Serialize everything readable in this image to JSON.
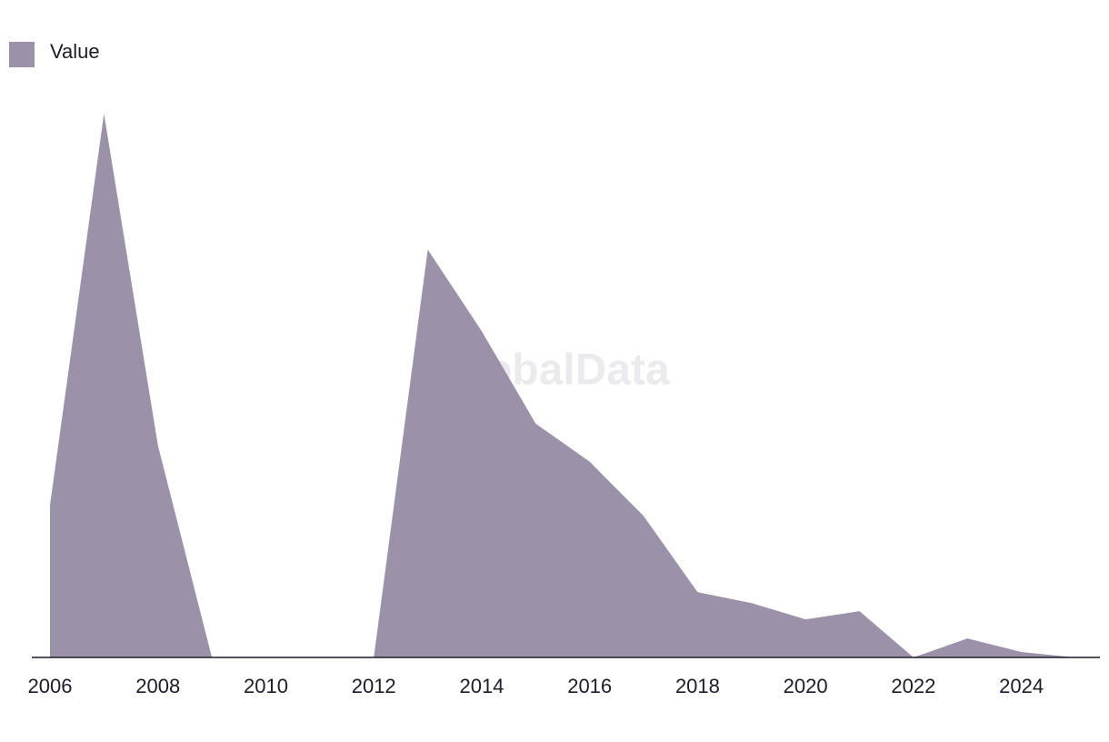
{
  "chart_data": {
    "type": "area",
    "legend": "Value",
    "watermark": "GlobalData",
    "color": "#9b91a9",
    "x": [
      2006,
      2007,
      2008,
      2009,
      2010,
      2011,
      2012,
      2013,
      2014,
      2015,
      2016,
      2017,
      2018,
      2019,
      2020,
      2021,
      2022,
      2023,
      2024,
      2025
    ],
    "values": [
      28,
      100,
      39,
      0,
      0,
      0,
      0,
      75,
      60,
      43,
      36,
      26,
      12,
      10,
      7,
      8.5,
      0,
      3.5,
      1,
      0
    ],
    "xlim": [
      2006,
      2025
    ],
    "ylim": [
      0,
      100
    ],
    "xticks": [
      2006,
      2008,
      2010,
      2012,
      2014,
      2016,
      2018,
      2020,
      2022,
      2024
    ]
  }
}
